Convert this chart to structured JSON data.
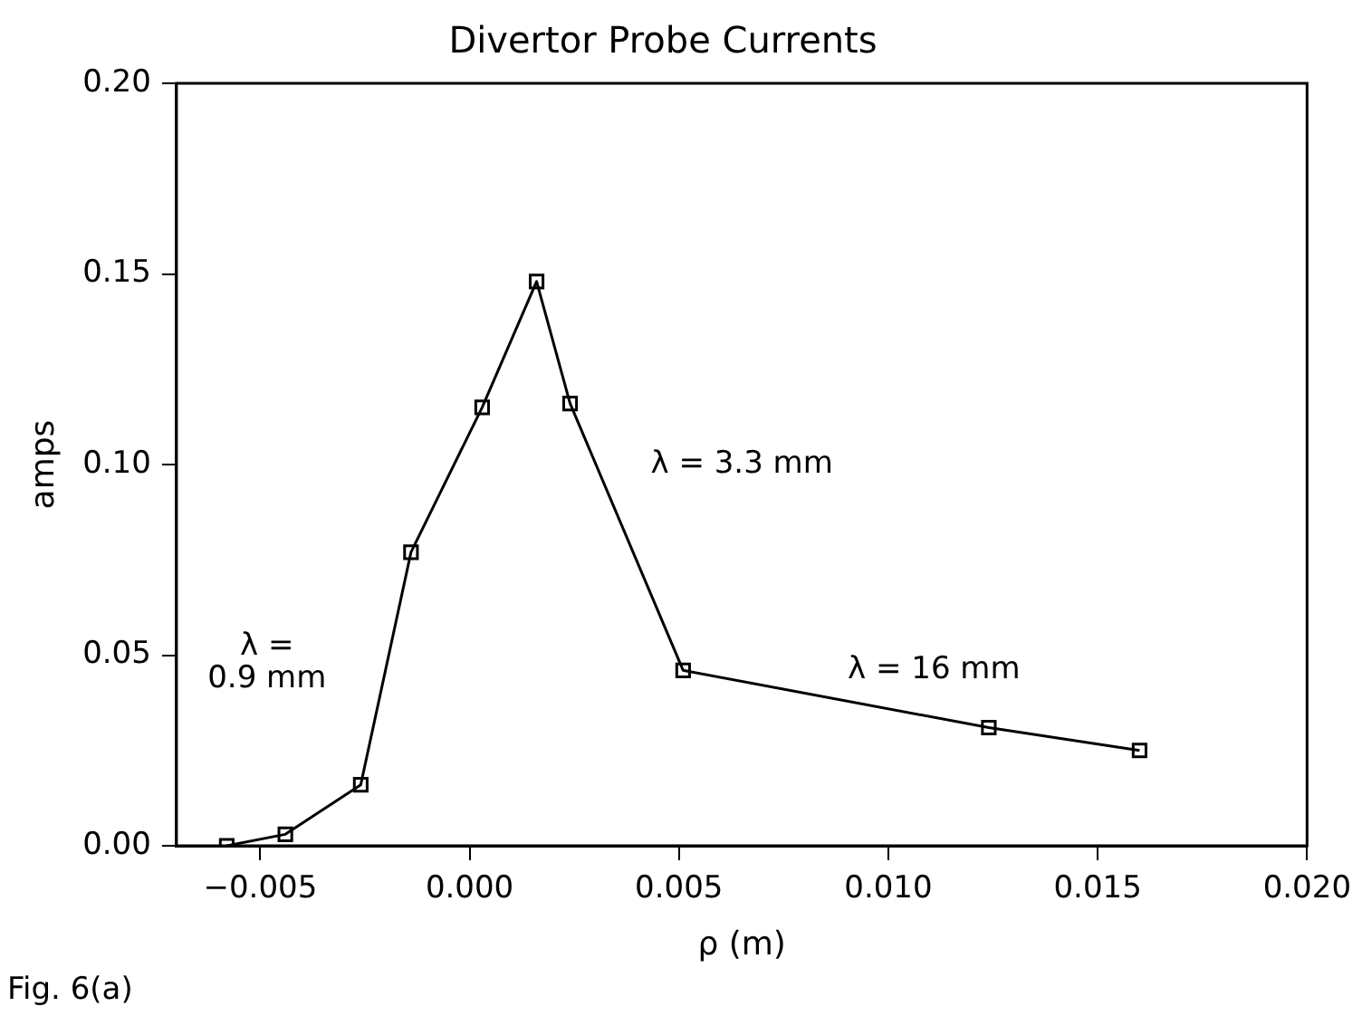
{
  "chart_data": {
    "type": "line",
    "title": "Divertor Probe Currents",
    "xlabel": "ρ (m)",
    "ylabel": "amps",
    "x": [
      -0.0058,
      -0.0044,
      -0.0026,
      -0.0014,
      0.0003,
      0.0016,
      0.0024,
      0.0051,
      0.0124,
      0.016
    ],
    "series": [
      {
        "color": "#000000",
        "values": [
          0.0,
          0.003,
          0.016,
          0.077,
          0.115,
          0.148,
          0.116,
          0.046,
          0.031,
          0.025
        ]
      }
    ],
    "xlim": [
      -0.007,
      0.02
    ],
    "xticks": [
      {
        "value": -0.005,
        "label": "−0.005"
      },
      {
        "value": 0,
        "label": "0.000"
      },
      {
        "value": 0.005,
        "label": "0.005"
      },
      {
        "value": 0.01,
        "label": "0.010"
      },
      {
        "value": 0.015,
        "label": "0.015"
      },
      {
        "value": 0.02,
        "label": "0.020"
      }
    ],
    "ylim": [
      0,
      0.2
    ],
    "yticks": [
      {
        "value": 0,
        "label": "0.00"
      },
      {
        "value": 0.05,
        "label": "0.05"
      },
      {
        "value": 0.1,
        "label": "0.10"
      },
      {
        "value": 0.15,
        "label": "0.15"
      },
      {
        "value": 0.2,
        "label": "0.20"
      }
    ],
    "grid": false,
    "legend": false,
    "marker": "square",
    "line_style": "solid",
    "annotations": [
      "λ = 3.3 mm",
      "λ =\n0.9 mm",
      "λ = 16 mm",
      "Fig. 6(a)"
    ]
  }
}
